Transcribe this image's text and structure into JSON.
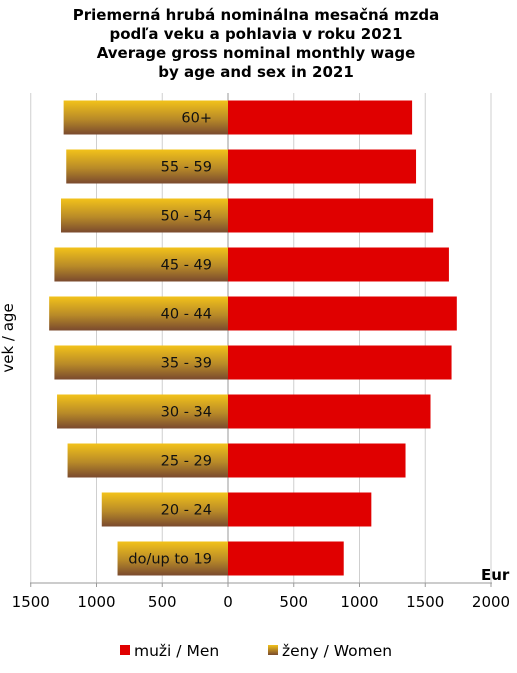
{
  "chart_data": {
    "type": "bar",
    "orientation": "horizontal-butterfly",
    "title": [
      "Priemerná hrubá nominálna mesačná mzda",
      "podľa veku a pohlavia v roku 2021",
      "Average gross nominal monthly wage",
      "by age and sex in 2021"
    ],
    "ylabel": "vek / age",
    "xlabel": "Eur",
    "xlim": [
      -1500,
      2000
    ],
    "ticks": [
      {
        "value": -1500,
        "label": "1500"
      },
      {
        "value": -1000,
        "label": "1000"
      },
      {
        "value": -500,
        "label": "500"
      },
      {
        "value": 0,
        "label": "0"
      },
      {
        "value": 500,
        "label": "500"
      },
      {
        "value": 1000,
        "label": "1000"
      },
      {
        "value": 1500,
        "label": "1500"
      },
      {
        "value": 2000,
        "label": "2000"
      }
    ],
    "grid": true,
    "legend_position": "bottom",
    "categories": [
      "60+",
      "55 - 59",
      "50 - 54",
      "45 - 49",
      "40 - 44",
      "35 - 39",
      "30 - 34",
      "25 - 29",
      "20 - 24",
      "do/up to 19"
    ],
    "series": [
      {
        "name": "muži / Men",
        "color": "#e00000",
        "side": "right",
        "values": [
          1400,
          1430,
          1560,
          1680,
          1740,
          1700,
          1540,
          1350,
          1090,
          880
        ]
      },
      {
        "name": "ženy / Women",
        "color": "#a07c20",
        "side": "left",
        "values": [
          1250,
          1230,
          1270,
          1320,
          1360,
          1320,
          1300,
          1220,
          960,
          840
        ]
      }
    ]
  }
}
